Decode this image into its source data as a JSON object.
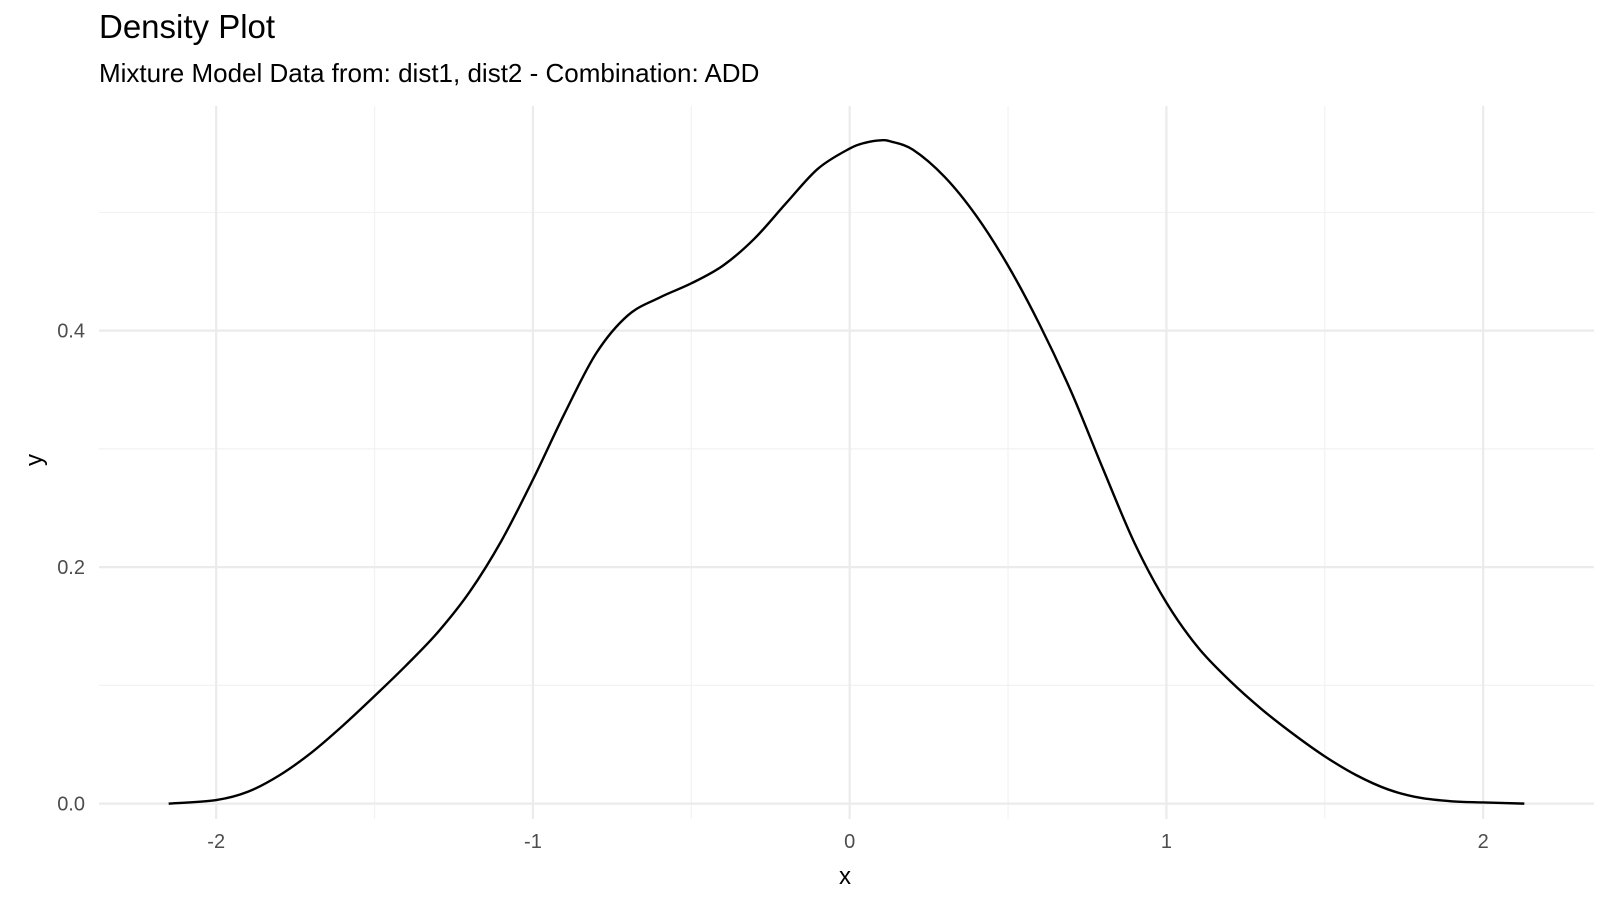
{
  "chart_data": {
    "type": "line",
    "title": "Density Plot",
    "subtitle": "Mixture Model Data from: dist1, dist2 - Combination: ADD",
    "xlabel": "x",
    "ylabel": "y",
    "xlim": [
      -2.37,
      2.35
    ],
    "ylim": [
      -0.013,
      0.59
    ],
    "x_ticks": [
      -2,
      -1,
      0,
      1,
      2
    ],
    "x_tick_labels": [
      "-2",
      "-1",
      "0",
      "1",
      "2"
    ],
    "y_ticks": [
      0.0,
      0.2,
      0.4
    ],
    "y_tick_labels": [
      "0.0",
      "0.2",
      "0.4"
    ],
    "grid": true,
    "series": [
      {
        "color": "#000000",
        "x": [
          -2.15,
          -2.0,
          -1.9,
          -1.8,
          -1.7,
          -1.6,
          -1.5,
          -1.4,
          -1.3,
          -1.2,
          -1.1,
          -1.0,
          -0.9,
          -0.8,
          -0.7,
          -0.6,
          -0.5,
          -0.4,
          -0.3,
          -0.2,
          -0.1,
          0.0,
          0.05,
          0.1,
          0.13,
          0.2,
          0.3,
          0.4,
          0.5,
          0.6,
          0.7,
          0.8,
          0.9,
          1.0,
          1.1,
          1.2,
          1.3,
          1.4,
          1.5,
          1.6,
          1.7,
          1.8,
          1.9,
          2.0,
          2.13
        ],
        "y": [
          0.0,
          0.003,
          0.01,
          0.024,
          0.043,
          0.066,
          0.091,
          0.117,
          0.145,
          0.179,
          0.222,
          0.274,
          0.33,
          0.381,
          0.413,
          0.428,
          0.44,
          0.455,
          0.478,
          0.508,
          0.537,
          0.554,
          0.559,
          0.561,
          0.56,
          0.553,
          0.53,
          0.497,
          0.455,
          0.405,
          0.348,
          0.283,
          0.22,
          0.17,
          0.132,
          0.104,
          0.08,
          0.059,
          0.04,
          0.024,
          0.012,
          0.005,
          0.002,
          0.001,
          0.0
        ]
      }
    ]
  }
}
